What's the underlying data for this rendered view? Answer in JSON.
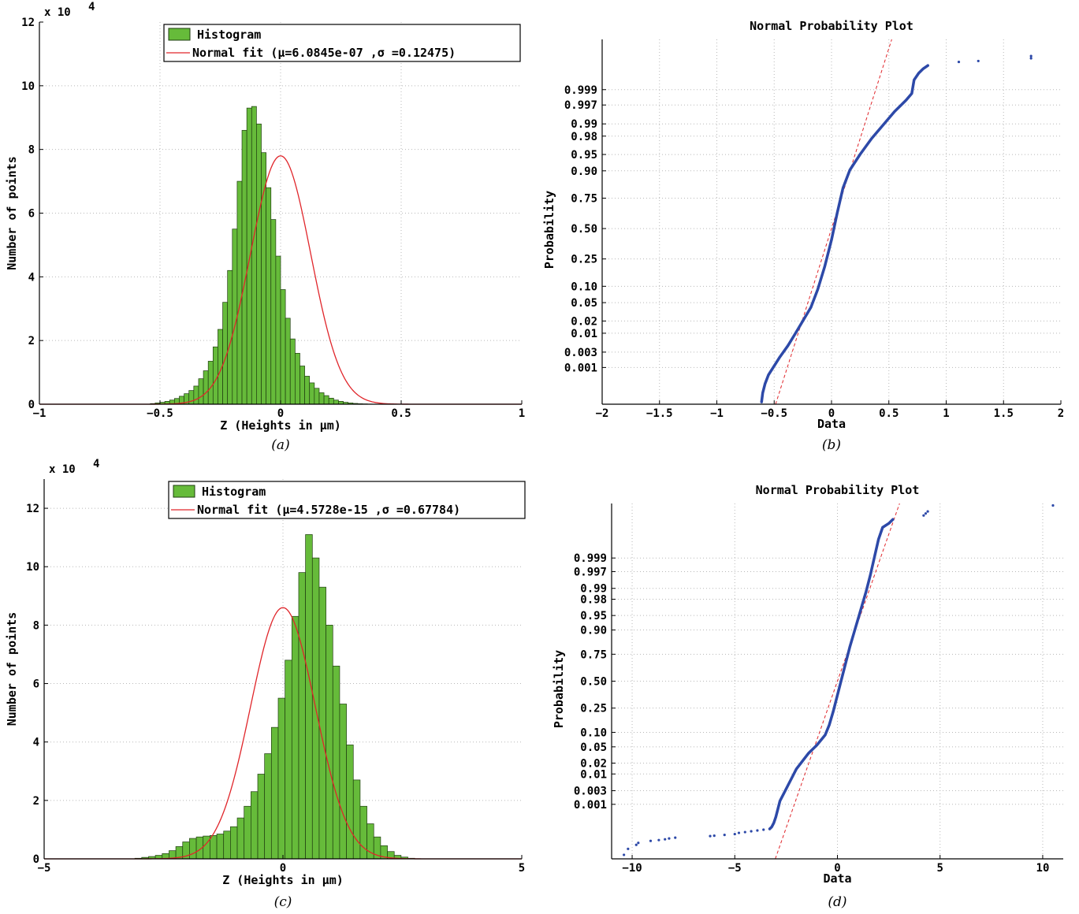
{
  "chart_data": [
    {
      "id": "a",
      "type": "bar",
      "caption": "(a)",
      "exponent_label": "x 10",
      "exponent_power": "4",
      "xlabel": "Z (Heights in μm)",
      "ylabel": "Number of points",
      "xlim": [
        -1,
        1
      ],
      "ylim": [
        0,
        12
      ],
      "xticks": [
        "−1",
        "−0.5",
        "0",
        "0.5",
        "1"
      ],
      "xtick_values": [
        -1,
        -0.5,
        0,
        0.5,
        1
      ],
      "yticks": [
        "0",
        "2",
        "4",
        "6",
        "8",
        "10",
        "12"
      ],
      "ytick_values": [
        0,
        2,
        4,
        6,
        8,
        10,
        12
      ],
      "legend": {
        "hist": "Histogram",
        "fit": "Normal fit (μ=6.0845e-07 ,σ =0.12475)"
      },
      "bin_start": -0.62,
      "bin_width": 0.02,
      "values": [
        0,
        0,
        0,
        0,
        0.02,
        0.04,
        0.06,
        0.09,
        0.13,
        0.18,
        0.25,
        0.33,
        0.43,
        0.57,
        0.8,
        1.05,
        1.35,
        1.8,
        2.35,
        3.2,
        4.2,
        5.5,
        7.0,
        8.6,
        9.3,
        9.35,
        8.8,
        7.9,
        6.8,
        5.8,
        4.65,
        3.6,
        2.7,
        2.05,
        1.6,
        1.2,
        0.88,
        0.67,
        0.5,
        0.36,
        0.27,
        0.19,
        0.13,
        0.09,
        0.06,
        0.04,
        0.025,
        0.015,
        0.01,
        0.005,
        0.003,
        0.002,
        0.001
      ],
      "fit": {
        "mu": 6.0845e-07,
        "sigma": 0.12475,
        "peak": 7.8
      }
    },
    {
      "id": "b",
      "type": "scatter",
      "caption": "(b)",
      "title": "Normal Probability Plot",
      "xlabel": "Data",
      "ylabel": "Probability",
      "xlim": [
        -2,
        2
      ],
      "xticks": [
        "−2",
        "−1.5",
        "−1",
        "−0.5",
        "0",
        "0.5",
        "1",
        "1.5",
        "2"
      ],
      "xtick_values": [
        -2,
        -1.5,
        -1,
        -0.5,
        0,
        0.5,
        1,
        1.5,
        2
      ],
      "yticks": [
        "0.999",
        "0.997",
        "0.99",
        "0.98",
        "0.95",
        "0.90",
        "0.75",
        "0.50",
        "0.25",
        "0.10",
        "0.05",
        "0.02",
        "0.01",
        "0.003",
        "0.001"
      ],
      "ytick_values": [
        0.999,
        0.997,
        0.99,
        0.98,
        0.95,
        0.9,
        0.75,
        0.5,
        0.25,
        0.1,
        0.05,
        0.02,
        0.01,
        0.003,
        0.001
      ],
      "zlim": [
        -3.9,
        4.2
      ],
      "curve": [
        [
          -0.61,
          -3.85
        ],
        [
          -0.6,
          -3.65
        ],
        [
          -0.58,
          -3.45
        ],
        [
          -0.55,
          -3.25
        ],
        [
          -0.5,
          -3.05
        ],
        [
          -0.45,
          -2.85
        ],
        [
          -0.38,
          -2.6
        ],
        [
          -0.32,
          -2.35
        ],
        [
          -0.25,
          -2.05
        ],
        [
          -0.18,
          -1.75
        ],
        [
          -0.12,
          -1.35
        ],
        [
          -0.06,
          -0.85
        ],
        [
          0.0,
          -0.25
        ],
        [
          0.05,
          0.35
        ],
        [
          0.1,
          0.9
        ],
        [
          0.16,
          1.3
        ],
        [
          0.25,
          1.65
        ],
        [
          0.35,
          2.0
        ],
        [
          0.45,
          2.3
        ],
        [
          0.55,
          2.6
        ],
        [
          0.65,
          2.85
        ],
        [
          0.7,
          3.0
        ],
        [
          0.72,
          3.3
        ],
        [
          0.76,
          3.45
        ],
        [
          0.8,
          3.55
        ],
        [
          0.84,
          3.62
        ]
      ],
      "outliers": [
        [
          1.11,
          3.7
        ],
        [
          1.28,
          3.72
        ],
        [
          1.74,
          3.78
        ],
        [
          1.74,
          3.83
        ]
      ],
      "ref_line": {
        "mu": 0.0,
        "sigma": 0.125
      }
    },
    {
      "id": "c",
      "type": "bar",
      "caption": "(c)",
      "exponent_label": "x 10",
      "exponent_power": "4",
      "xlabel": "Z (Heights in μm)",
      "ylabel": "Number of points",
      "xlim": [
        -5,
        5
      ],
      "ylim": [
        0,
        13
      ],
      "xticks": [
        "−5",
        "0",
        "5"
      ],
      "xtick_values": [
        -5,
        0,
        5
      ],
      "yticks": [
        "0",
        "2",
        "4",
        "6",
        "8",
        "10",
        "12"
      ],
      "ytick_values": [
        0,
        2,
        4,
        6,
        8,
        10,
        12
      ],
      "legend": {
        "hist": "Histogram",
        "fit": "Normal fit (μ=4.5728e-15 ,σ =0.67784)"
      },
      "bin_start": -3.1,
      "bin_width": 0.1429,
      "values": [
        0.02,
        0.05,
        0.08,
        0.12,
        0.18,
        0.28,
        0.42,
        0.58,
        0.7,
        0.75,
        0.78,
        0.8,
        0.85,
        0.95,
        1.1,
        1.4,
        1.8,
        2.3,
        2.9,
        3.6,
        4.5,
        5.5,
        6.8,
        8.3,
        9.8,
        11.1,
        10.3,
        9.3,
        8.0,
        6.6,
        5.3,
        3.9,
        2.7,
        1.8,
        1.2,
        0.75,
        0.45,
        0.25,
        0.12,
        0.06,
        0.02
      ],
      "fit": {
        "mu": 0.0,
        "sigma": 0.67784,
        "peak": 8.6
      }
    },
    {
      "id": "d",
      "type": "scatter",
      "caption": "(d)",
      "title": "Normal Probability Plot",
      "xlabel": "Data",
      "ylabel": "Probability",
      "xlim": [
        -11,
        11
      ],
      "xticks": [
        "−10",
        "−5",
        "0",
        "5",
        "10"
      ],
      "xtick_values": [
        -10,
        -5,
        0,
        5,
        10
      ],
      "yticks": [
        "0.999",
        "0.997",
        "0.99",
        "0.98",
        "0.95",
        "0.90",
        "0.75",
        "0.50",
        "0.25",
        "0.10",
        "0.05",
        "0.02",
        "0.01",
        "0.003",
        "0.001"
      ],
      "ytick_values": [
        0.999,
        0.997,
        0.99,
        0.98,
        0.95,
        0.9,
        0.75,
        0.5,
        0.25,
        0.1,
        0.05,
        0.02,
        0.01,
        0.003,
        0.001
      ],
      "zlim": [
        -4.45,
        4.45
      ],
      "curve": [
        [
          -3.3,
          -3.7
        ],
        [
          -3.2,
          -3.65
        ],
        [
          -3.1,
          -3.55
        ],
        [
          -3.0,
          -3.4
        ],
        [
          -2.9,
          -3.2
        ],
        [
          -2.8,
          -3.0
        ],
        [
          -2.6,
          -2.8
        ],
        [
          -2.4,
          -2.6
        ],
        [
          -2.2,
          -2.4
        ],
        [
          -2.0,
          -2.2
        ],
        [
          -1.7,
          -2.0
        ],
        [
          -1.4,
          -1.8
        ],
        [
          -1.0,
          -1.6
        ],
        [
          -0.6,
          -1.35
        ],
        [
          -0.4,
          -1.1
        ],
        [
          -0.2,
          -0.75
        ],
        [
          0.0,
          -0.35
        ],
        [
          0.2,
          0.05
        ],
        [
          0.4,
          0.45
        ],
        [
          0.6,
          0.85
        ],
        [
          0.8,
          1.2
        ],
        [
          1.0,
          1.55
        ],
        [
          1.2,
          1.9
        ],
        [
          1.4,
          2.25
        ],
        [
          1.6,
          2.65
        ],
        [
          1.8,
          3.1
        ],
        [
          2.0,
          3.55
        ],
        [
          2.2,
          3.85
        ],
        [
          2.5,
          3.95
        ],
        [
          2.7,
          4.05
        ]
      ],
      "tail": [
        [
          -10.4,
          -4.35
        ],
        [
          -10.2,
          -4.2
        ],
        [
          -9.8,
          -4.1
        ],
        [
          -9.7,
          -4.05
        ],
        [
          -9.1,
          -4.0
        ],
        [
          -8.7,
          -3.98
        ],
        [
          -8.4,
          -3.96
        ],
        [
          -8.2,
          -3.94
        ],
        [
          -7.9,
          -3.92
        ],
        [
          -6.2,
          -3.88
        ],
        [
          -6.0,
          -3.87
        ],
        [
          -5.5,
          -3.85
        ],
        [
          -5.0,
          -3.83
        ],
        [
          -4.8,
          -3.8
        ],
        [
          -4.5,
          -3.78
        ],
        [
          -4.2,
          -3.76
        ],
        [
          -3.9,
          -3.74
        ],
        [
          -3.6,
          -3.72
        ]
      ],
      "outliers": [
        [
          4.2,
          4.15
        ],
        [
          4.3,
          4.2
        ],
        [
          4.4,
          4.25
        ],
        [
          10.5,
          4.4
        ]
      ],
      "ref_line": {
        "mu": 0.0,
        "sigma": 0.68
      }
    }
  ]
}
